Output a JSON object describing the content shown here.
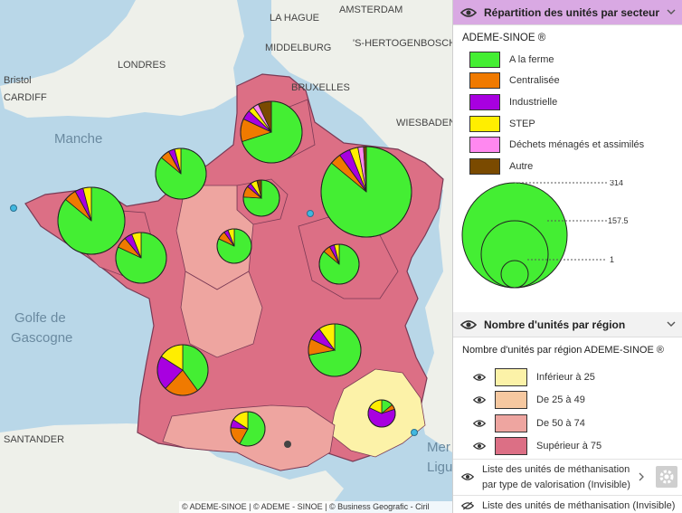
{
  "map": {
    "labels": {
      "la_hague": "LA HAGUE",
      "amsterdam": "AMSTERDAM",
      "bristol": "Bristol",
      "london": "LONDRES",
      "bruxelles": "BRUXELLES",
      "manche": "Manche",
      "golfe1": "Golfe de",
      "golfe2": "Gascogne",
      "cardiff": "CARDIFF",
      "middelburg": "MIDDELBURG",
      "hertogenbosch": "'S-HERTOGENBOSCH",
      "wiesbaden": "WIESBADEN",
      "santander": "SANTANDER",
      "mer": "Mer",
      "ligu": "Ligu"
    },
    "attribution": "© ADEME-SINOE | © ADEME - SINOE | © Business Geografic - Ciril GROUP"
  },
  "panel": {
    "section1": {
      "title": "Répartition des unités par secteur",
      "source": "ADEME-SINOE ®",
      "legend": [
        {
          "label": "A la ferme",
          "color": "#44ee33"
        },
        {
          "label": "Centralisée",
          "color": "#f07a00"
        },
        {
          "label": "Industrielle",
          "color": "#a800e0"
        },
        {
          "label": "STEP",
          "color": "#ffee00"
        },
        {
          "label": "Déchets ménagés et assimilés",
          "color": "#ff88f0"
        },
        {
          "label": "Autre",
          "color": "#7a4a00"
        }
      ],
      "size_legend": {
        "max": "314",
        "mid": "157.5",
        "min": "1"
      }
    },
    "section2": {
      "title": "Nombre d'unités par région",
      "source": "Nombre d'unités par région ADEME-SINOE ®",
      "classes": [
        {
          "label": "Inférieur à 25",
          "color": "#fcf2a8"
        },
        {
          "label": "De 25 à 49",
          "color": "#f6c8a0"
        },
        {
          "label": "De 50 à 74",
          "color": "#eea5a0"
        },
        {
          "label": "Supérieur à 75",
          "color": "#dc6f85"
        }
      ]
    },
    "layer3": {
      "line1": "Liste des unités de méthanisation",
      "line2": "par type de valorisation (Invisible)"
    },
    "layer4": {
      "label": "Liste des unités de méthanisation (Invisible)"
    }
  }
}
